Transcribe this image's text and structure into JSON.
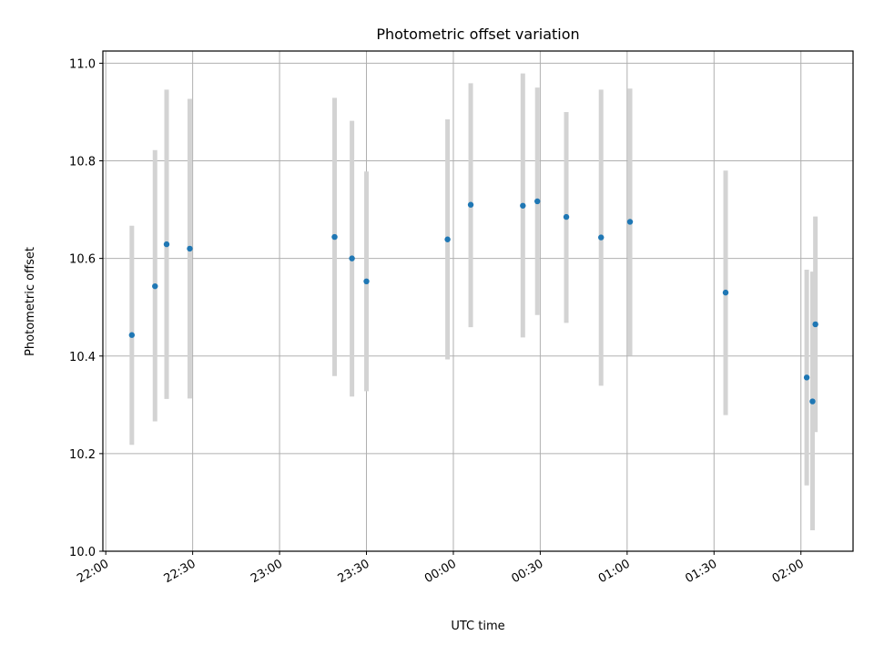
{
  "chart_data": {
    "type": "scatter",
    "title": "Photometric offset variation",
    "xlabel": "UTC time",
    "ylabel": "Photometric offset",
    "ylim": [
      10.0,
      11.025
    ],
    "xlim": [
      "21:59",
      "02:18"
    ],
    "x_ticks": [
      "22:00",
      "22:30",
      "23:00",
      "23:30",
      "00:00",
      "00:30",
      "01:00",
      "01:30",
      "02:00"
    ],
    "y_ticks": [
      "10.0",
      "10.2",
      "10.4",
      "10.6",
      "10.8",
      "11.0"
    ],
    "grid": true,
    "marker_color": "#1f77b4",
    "errorbar_color": "#d3d3d3",
    "points": [
      {
        "time": "22:09",
        "y": 10.443,
        "yerr_low": 10.218,
        "yerr_high": 10.667
      },
      {
        "time": "22:17",
        "y": 10.543,
        "yerr_low": 10.266,
        "yerr_high": 10.822
      },
      {
        "time": "22:21",
        "y": 10.629,
        "yerr_low": 10.312,
        "yerr_high": 10.946
      },
      {
        "time": "22:29",
        "y": 10.62,
        "yerr_low": 10.313,
        "yerr_high": 10.927
      },
      {
        "time": "23:19",
        "y": 10.644,
        "yerr_low": 10.359,
        "yerr_high": 10.929
      },
      {
        "time": "23:25",
        "y": 10.6,
        "yerr_low": 10.317,
        "yerr_high": 10.882
      },
      {
        "time": "23:30",
        "y": 10.553,
        "yerr_low": 10.328,
        "yerr_high": 10.778
      },
      {
        "time": "23:58",
        "y": 10.639,
        "yerr_low": 10.393,
        "yerr_high": 10.885
      },
      {
        "time": "00:06",
        "y": 10.71,
        "yerr_low": 10.459,
        "yerr_high": 10.959
      },
      {
        "time": "00:24",
        "y": 10.708,
        "yerr_low": 10.438,
        "yerr_high": 10.979
      },
      {
        "time": "00:29",
        "y": 10.717,
        "yerr_low": 10.484,
        "yerr_high": 10.95
      },
      {
        "time": "00:39",
        "y": 10.685,
        "yerr_low": 10.468,
        "yerr_high": 10.9
      },
      {
        "time": "00:51",
        "y": 10.643,
        "yerr_low": 10.339,
        "yerr_high": 10.946
      },
      {
        "time": "01:01",
        "y": 10.675,
        "yerr_low": 10.401,
        "yerr_high": 10.948
      },
      {
        "time": "01:34",
        "y": 10.53,
        "yerr_low": 10.279,
        "yerr_high": 10.78
      },
      {
        "time": "02:02",
        "y": 10.356,
        "yerr_low": 10.135,
        "yerr_high": 10.577
      },
      {
        "time": "02:04",
        "y": 10.307,
        "yerr_low": 10.043,
        "yerr_high": 10.573
      },
      {
        "time": "02:05",
        "y": 10.465,
        "yerr_low": 10.244,
        "yerr_high": 10.686
      }
    ]
  }
}
